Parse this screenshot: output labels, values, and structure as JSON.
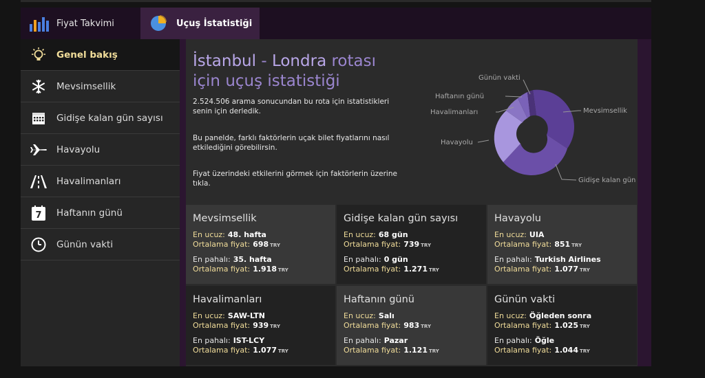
{
  "tabs": [
    {
      "label": "Fiyat Takvimi",
      "icon": "bar-chart-icon"
    },
    {
      "label": "Uçuş İstatistiği",
      "icon": "pie-chart-icon"
    }
  ],
  "sidebar": {
    "items": [
      {
        "label": "Genel bakış",
        "icon": "lightbulb-icon",
        "active": true
      },
      {
        "label": "Mevsimsellik",
        "icon": "snowflake-icon"
      },
      {
        "label": "Gidişe kalan gün sayısı",
        "icon": "calendar-icon"
      },
      {
        "label": "Havayolu",
        "icon": "airplane-icon"
      },
      {
        "label": "Havalimanları",
        "icon": "runway-icon"
      },
      {
        "label": "Haftanın günü",
        "icon": "calendar-day-icon"
      },
      {
        "label": "Günün vakti",
        "icon": "clock-icon"
      }
    ]
  },
  "hero": {
    "title_from": "İstanbul",
    "title_sep": " - ",
    "title_to": "Londra",
    "title_rest": " rotası için uçuş istatistiği",
    "p1": "2.524.506 arama sonucundan bu rota için istatistikleri senin için derledik.",
    "p2": "Bu panelde, farklı faktörlerin uçak bilet fiyatlarını nasıl etkilediğini görebilirsin.",
    "p3": "Fiyat üzerindeki etkilerini görmek için faktörlerin üzerine tıkla."
  },
  "pie": {
    "labels": {
      "mevsimsellik": "Mevsimsellik",
      "gidise": "Gidişe kalan gün sayısı",
      "havayolu": "Havayolu",
      "havalimanlari": "Havalimanları",
      "haftanin": "Haftanın günü",
      "gunun": "Günün vakti"
    },
    "colors": [
      "#5b3f96",
      "#6b4fa8",
      "#a896de",
      "#8a75c4",
      "#7a62b8",
      "#4a3278"
    ]
  },
  "labels": {
    "cheapest": "En ucuz:",
    "expensive": "En pahalı:",
    "avg": "Ortalama fiyat:",
    "currency": "TRY"
  },
  "cards": [
    {
      "title": "Mevsimsellik",
      "min": "48. hafta",
      "min_avg": "698",
      "max": "35. hafta",
      "max_avg": "1.918"
    },
    {
      "title": "Gidişe kalan gün sayısı",
      "min": "68 gün",
      "min_avg": "739",
      "max": "0 gün",
      "max_avg": "1.271"
    },
    {
      "title": "Havayolu",
      "min": "UIA",
      "min_avg": "851",
      "max": "Turkish Airlines",
      "max_avg": "1.077"
    },
    {
      "title": "Havalimanları",
      "min": "SAW-LTN",
      "min_avg": "939",
      "max": "IST-LCY",
      "max_avg": "1.077"
    },
    {
      "title": "Haftanın günü",
      "min": "Salı",
      "min_avg": "983",
      "max": "Pazar",
      "max_avg": "1.121"
    },
    {
      "title": "Günün vakti",
      "min": "Öğleden sonra",
      "min_avg": "1.025",
      "max": "Öğle",
      "max_avg": "1.044"
    }
  ]
}
